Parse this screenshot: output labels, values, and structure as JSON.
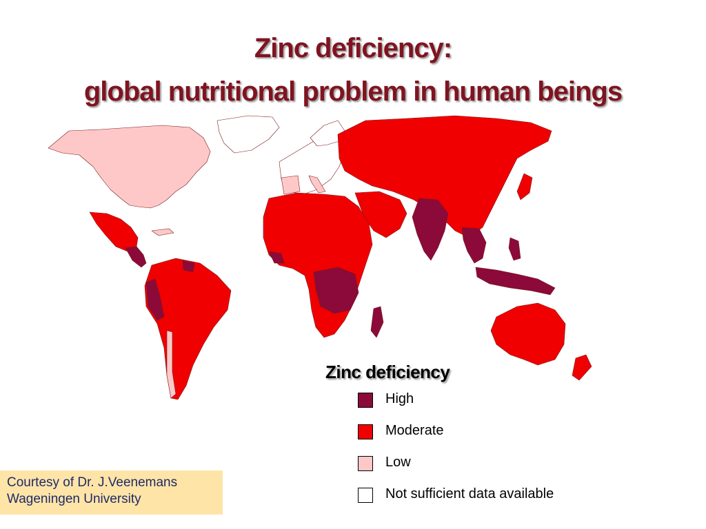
{
  "title": {
    "line1": "Zinc deficiency:",
    "line2": "global nutritional problem in human beings"
  },
  "legend": {
    "title": "Zinc deficiency",
    "items": [
      {
        "label": "High",
        "color": "#8b0a3a"
      },
      {
        "label": "Moderate",
        "color": "#f00000"
      },
      {
        "label": "Low",
        "color": "#ffc8c8"
      },
      {
        "label": "Not sufficient data available",
        "color": "#ffffff"
      }
    ]
  },
  "courtesy": {
    "line1": "Courtesy of Dr. J.Veenemans",
    "line2": "Wageningen University"
  },
  "colors": {
    "title": "#7f1420",
    "high": "#8b0a3a",
    "moderate": "#f00000",
    "low": "#ffc8c8",
    "no_data": "#ffffff",
    "courtesy_bg": "#ffe4a8",
    "courtesy_text": "#1e2a66"
  }
}
